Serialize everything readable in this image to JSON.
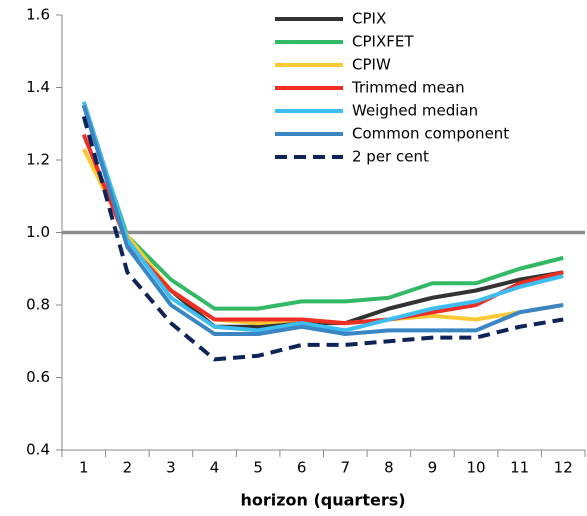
{
  "chart_data": {
    "type": "line",
    "xlabel": "horizon (quarters)",
    "categories": [
      "1",
      "2",
      "3",
      "4",
      "5",
      "6",
      "7",
      "8",
      "9",
      "10",
      "11",
      "12"
    ],
    "series": [
      {
        "name": "CPIX",
        "color": "#333333",
        "values": [
          1.36,
          0.98,
          0.84,
          0.74,
          0.74,
          0.75,
          0.75,
          0.79,
          0.82,
          0.84,
          0.87,
          0.89
        ]
      },
      {
        "name": "CPIXFET",
        "color": "#33b865",
        "values": [
          1.35,
          0.99,
          0.87,
          0.79,
          0.79,
          0.81,
          0.81,
          0.82,
          0.86,
          0.86,
          0.9,
          0.93
        ]
      },
      {
        "name": "CPIW",
        "color": "#fcc934",
        "values": [
          1.23,
          0.99,
          0.84,
          0.76,
          0.75,
          0.76,
          0.75,
          0.76,
          0.77,
          0.76,
          0.78,
          0.8
        ]
      },
      {
        "name": "Trimmed mean",
        "color": "#ee2e24",
        "values": [
          1.27,
          0.97,
          0.84,
          0.76,
          0.76,
          0.76,
          0.75,
          0.76,
          0.78,
          0.8,
          0.86,
          0.89
        ]
      },
      {
        "name": "Weighed median",
        "color": "#3dbdf0",
        "values": [
          1.36,
          0.98,
          0.82,
          0.74,
          0.73,
          0.75,
          0.73,
          0.76,
          0.79,
          0.81,
          0.85,
          0.88
        ]
      },
      {
        "name": "Common component",
        "color": "#3a86c4",
        "values": [
          1.35,
          0.96,
          0.8,
          0.72,
          0.72,
          0.74,
          0.72,
          0.73,
          0.73,
          0.73,
          0.78,
          0.8
        ]
      },
      {
        "name": "2 per cent",
        "color": "#0f2456",
        "dashed": true,
        "values": [
          1.32,
          0.89,
          0.75,
          0.65,
          0.66,
          0.69,
          0.69,
          0.7,
          0.71,
          0.71,
          0.74,
          0.76
        ]
      }
    ],
    "reference_line": {
      "value": 1,
      "color": "#8c8c8c"
    },
    "ylim": [
      0.4,
      1.6
    ],
    "yticks": [
      0.4,
      0.6,
      0.8,
      {
        "value": 1,
        "label": "1.0"
      },
      1.2,
      1.4,
      1.6
    ],
    "grid": false,
    "legend": "top-right"
  }
}
